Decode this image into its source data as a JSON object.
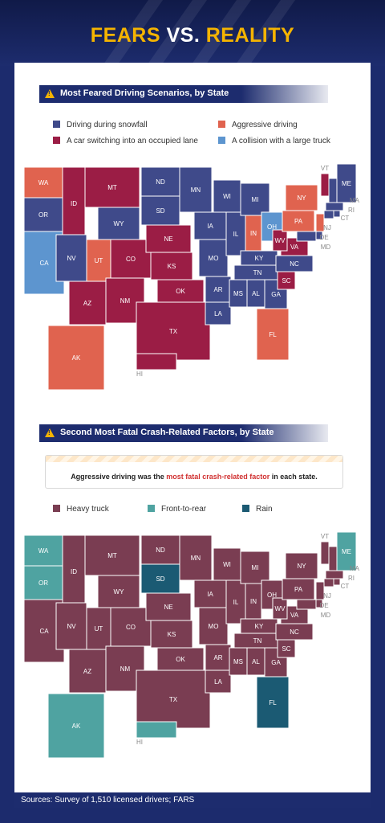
{
  "title": {
    "part1": "FEARS",
    "part2": "VS.",
    "part3": "REALITY"
  },
  "section1": {
    "heading": "Most Feared Driving Scenarios, by State"
  },
  "section2": {
    "heading": "Second Most Fatal Crash-Related Factors, by State",
    "callout_pre": "Aggressive driving was the ",
    "callout_highlight": "most fatal crash-related factor",
    "callout_post": " in each state."
  },
  "footer": {
    "sources": "Sources: Survey of 1,510 licensed drivers; FARS"
  },
  "colors": {
    "navy": "#1d2c6e",
    "gold": "#f5b400",
    "snow": "#3f4a8a",
    "aggressive": "#e0634f",
    "switching": "#9b1d45",
    "truck": "#5d95cf",
    "heavy_truck": "#7a3d52",
    "front_rear": "#4fa3a1",
    "rain": "#1b5a73"
  },
  "chart_data": [
    {
      "type": "map",
      "title": "Most Feared Driving Scenarios, by State",
      "legend": [
        {
          "key": "snow",
          "label": "Driving during snowfall"
        },
        {
          "key": "aggressive",
          "label": "Aggressive driving"
        },
        {
          "key": "switching",
          "label": "A car switching into an occupied lane"
        },
        {
          "key": "truck",
          "label": "A collision with a large truck"
        }
      ],
      "states": [
        {
          "abbr": "WA",
          "cat": "aggressive"
        },
        {
          "abbr": "OR",
          "cat": "snow"
        },
        {
          "abbr": "CA",
          "cat": "truck"
        },
        {
          "abbr": "ID",
          "cat": "switching"
        },
        {
          "abbr": "NV",
          "cat": "snow"
        },
        {
          "abbr": "MT",
          "cat": "switching"
        },
        {
          "abbr": "WY",
          "cat": "snow"
        },
        {
          "abbr": "UT",
          "cat": "aggressive"
        },
        {
          "abbr": "CO",
          "cat": "switching"
        },
        {
          "abbr": "AZ",
          "cat": "switching"
        },
        {
          "abbr": "NM",
          "cat": "switching"
        },
        {
          "abbr": "ND",
          "cat": "snow"
        },
        {
          "abbr": "SD",
          "cat": "snow"
        },
        {
          "abbr": "NE",
          "cat": "switching"
        },
        {
          "abbr": "KS",
          "cat": "switching"
        },
        {
          "abbr": "OK",
          "cat": "switching"
        },
        {
          "abbr": "TX",
          "cat": "switching"
        },
        {
          "abbr": "MN",
          "cat": "snow"
        },
        {
          "abbr": "IA",
          "cat": "snow"
        },
        {
          "abbr": "MO",
          "cat": "snow"
        },
        {
          "abbr": "AR",
          "cat": "snow"
        },
        {
          "abbr": "LA",
          "cat": "snow"
        },
        {
          "abbr": "WI",
          "cat": "snow"
        },
        {
          "abbr": "IL",
          "cat": "snow"
        },
        {
          "abbr": "MI",
          "cat": "snow"
        },
        {
          "abbr": "IN",
          "cat": "aggressive"
        },
        {
          "abbr": "OH",
          "cat": "truck"
        },
        {
          "abbr": "KY",
          "cat": "snow"
        },
        {
          "abbr": "TN",
          "cat": "snow"
        },
        {
          "abbr": "MS",
          "cat": "snow"
        },
        {
          "abbr": "AL",
          "cat": "snow"
        },
        {
          "abbr": "GA",
          "cat": "snow"
        },
        {
          "abbr": "FL",
          "cat": "aggressive"
        },
        {
          "abbr": "SC",
          "cat": "switching"
        },
        {
          "abbr": "NC",
          "cat": "snow"
        },
        {
          "abbr": "VA",
          "cat": "switching"
        },
        {
          "abbr": "WV",
          "cat": "switching"
        },
        {
          "abbr": "PA",
          "cat": "aggressive"
        },
        {
          "abbr": "NY",
          "cat": "aggressive"
        },
        {
          "abbr": "VT",
          "cat": "switching"
        },
        {
          "abbr": "NH",
          "cat": "snow"
        },
        {
          "abbr": "ME",
          "cat": "snow"
        },
        {
          "abbr": "MA",
          "cat": "snow"
        },
        {
          "abbr": "RI",
          "cat": "snow"
        },
        {
          "abbr": "CT",
          "cat": "snow"
        },
        {
          "abbr": "NJ",
          "cat": "aggressive"
        },
        {
          "abbr": "DE",
          "cat": "snow"
        },
        {
          "abbr": "MD",
          "cat": "snow"
        },
        {
          "abbr": "AK",
          "cat": "aggressive"
        },
        {
          "abbr": "HI",
          "cat": "switching"
        }
      ]
    },
    {
      "type": "map",
      "title": "Second Most Fatal Crash-Related Factors, by State",
      "legend": [
        {
          "key": "heavy_truck",
          "label": "Heavy truck"
        },
        {
          "key": "front_rear",
          "label": "Front-to-rear"
        },
        {
          "key": "rain",
          "label": "Rain"
        }
      ],
      "states": [
        {
          "abbr": "WA",
          "cat": "front_rear"
        },
        {
          "abbr": "OR",
          "cat": "front_rear"
        },
        {
          "abbr": "CA",
          "cat": "heavy_truck"
        },
        {
          "abbr": "ID",
          "cat": "heavy_truck"
        },
        {
          "abbr": "NV",
          "cat": "heavy_truck"
        },
        {
          "abbr": "MT",
          "cat": "heavy_truck"
        },
        {
          "abbr": "WY",
          "cat": "heavy_truck"
        },
        {
          "abbr": "UT",
          "cat": "heavy_truck"
        },
        {
          "abbr": "CO",
          "cat": "heavy_truck"
        },
        {
          "abbr": "AZ",
          "cat": "heavy_truck"
        },
        {
          "abbr": "NM",
          "cat": "heavy_truck"
        },
        {
          "abbr": "ND",
          "cat": "heavy_truck"
        },
        {
          "abbr": "SD",
          "cat": "rain"
        },
        {
          "abbr": "NE",
          "cat": "heavy_truck"
        },
        {
          "abbr": "KS",
          "cat": "heavy_truck"
        },
        {
          "abbr": "OK",
          "cat": "heavy_truck"
        },
        {
          "abbr": "TX",
          "cat": "heavy_truck"
        },
        {
          "abbr": "MN",
          "cat": "heavy_truck"
        },
        {
          "abbr": "IA",
          "cat": "heavy_truck"
        },
        {
          "abbr": "MO",
          "cat": "heavy_truck"
        },
        {
          "abbr": "AR",
          "cat": "heavy_truck"
        },
        {
          "abbr": "LA",
          "cat": "heavy_truck"
        },
        {
          "abbr": "WI",
          "cat": "heavy_truck"
        },
        {
          "abbr": "IL",
          "cat": "heavy_truck"
        },
        {
          "abbr": "MI",
          "cat": "heavy_truck"
        },
        {
          "abbr": "IN",
          "cat": "heavy_truck"
        },
        {
          "abbr": "OH",
          "cat": "heavy_truck"
        },
        {
          "abbr": "KY",
          "cat": "heavy_truck"
        },
        {
          "abbr": "TN",
          "cat": "heavy_truck"
        },
        {
          "abbr": "MS",
          "cat": "heavy_truck"
        },
        {
          "abbr": "AL",
          "cat": "heavy_truck"
        },
        {
          "abbr": "GA",
          "cat": "heavy_truck"
        },
        {
          "abbr": "FL",
          "cat": "rain"
        },
        {
          "abbr": "SC",
          "cat": "heavy_truck"
        },
        {
          "abbr": "NC",
          "cat": "heavy_truck"
        },
        {
          "abbr": "VA",
          "cat": "heavy_truck"
        },
        {
          "abbr": "WV",
          "cat": "heavy_truck"
        },
        {
          "abbr": "PA",
          "cat": "heavy_truck"
        },
        {
          "abbr": "NY",
          "cat": "heavy_truck"
        },
        {
          "abbr": "VT",
          "cat": "heavy_truck"
        },
        {
          "abbr": "NH",
          "cat": "heavy_truck"
        },
        {
          "abbr": "ME",
          "cat": "front_rear"
        },
        {
          "abbr": "MA",
          "cat": "heavy_truck"
        },
        {
          "abbr": "RI",
          "cat": "heavy_truck"
        },
        {
          "abbr": "CT",
          "cat": "heavy_truck"
        },
        {
          "abbr": "NJ",
          "cat": "heavy_truck"
        },
        {
          "abbr": "DE",
          "cat": "heavy_truck"
        },
        {
          "abbr": "MD",
          "cat": "heavy_truck"
        },
        {
          "abbr": "AK",
          "cat": "front_rear"
        },
        {
          "abbr": "HI",
          "cat": "front_rear"
        }
      ]
    }
  ]
}
